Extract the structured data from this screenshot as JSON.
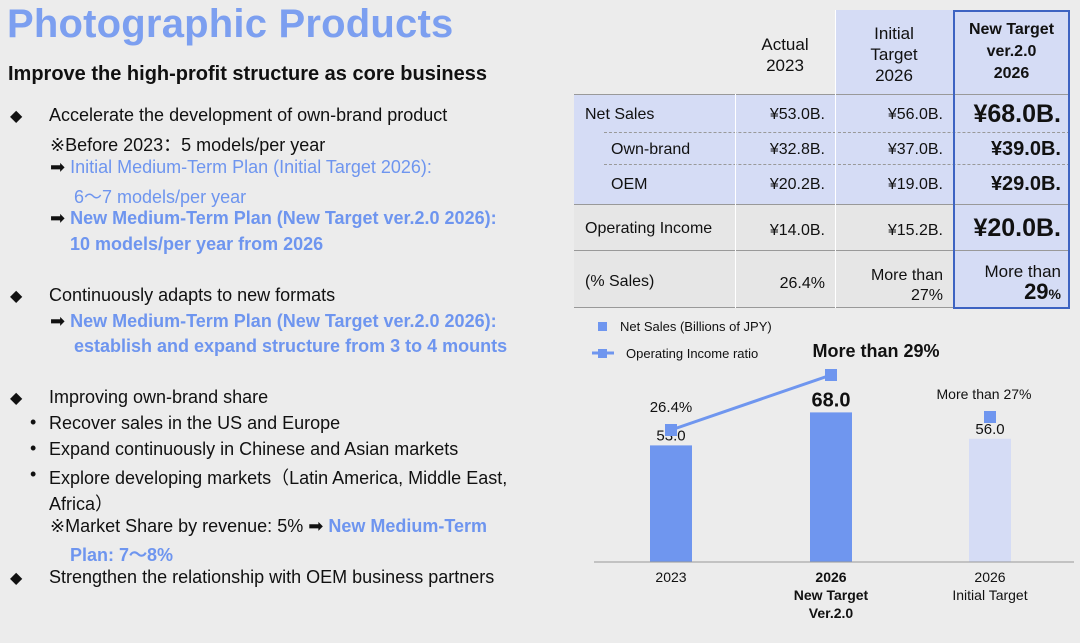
{
  "title": "Photographic Products",
  "subtitle": "Improve the high-profit structure as core business",
  "bullets": {
    "b1": "Accelerate the development of own-brand product",
    "b1_note": "※Before 2023：5 models/per year",
    "b1_a1_l1": "Initial Medium-Term Plan (Initial Target 2026):",
    "b1_a1_l2": "6〜7 models/per year",
    "b1_a2_l1": "New Medium-Term Plan (New Target ver.2.0 2026):",
    "b1_a2_l2": "10 models/per year from 2026",
    "b2": "Continuously adapts to new formats",
    "b2_a1_l1": "New Medium-Term Plan (New Target ver.2.0 2026):",
    "b2_a1_l2": "establish and expand structure from 3 to 4 mounts",
    "b3": "Improving own-brand share",
    "b3_s1": "Recover sales in the US and Europe",
    "b3_s2": "Expand continuously in Chinese and Asian markets",
    "b3_s3_l1": "Explore developing markets（Latin America, Middle East,",
    "b3_s3_l2": "Africa）",
    "b3_note_a": "※Market Share by revenue: 5%",
    "b3_note_b": "New Medium-Term",
    "b3_note_c": "Plan: 7〜8%",
    "b4": "Strengthen the relationship with OEM business partners"
  },
  "table": {
    "headers": {
      "actual_l1": "Actual",
      "actual_l2": "2023",
      "initial_l1": "Initial",
      "initial_l2": "Target",
      "initial_l3": "2026",
      "new_l1": "New Target",
      "new_l2": "ver.2.0",
      "new_l3": "2026"
    },
    "rows": [
      {
        "label": "Net Sales",
        "actual": "¥53.0B.",
        "initial": "¥56.0B.",
        "new": "¥68.0B."
      },
      {
        "label": "Own-brand",
        "actual": "¥32.8B.",
        "initial": "¥37.0B.",
        "new": "¥39.0B."
      },
      {
        "label": "OEM",
        "actual": "¥20.2B.",
        "initial": "¥19.0B.",
        "new": "¥29.0B."
      },
      {
        "label": "Operating Income",
        "actual": "¥14.0B.",
        "initial": "¥15.2B.",
        "new": "¥20.0B."
      },
      {
        "label": "(% Sales)",
        "actual": "26.4%",
        "initial_l1": "More than",
        "initial_l2": "27%",
        "new_l1": "More than",
        "new_l2": "29",
        "new_l2_pct": "%"
      }
    ]
  },
  "chart_data": {
    "type": "bar",
    "legend": [
      "Net Sales (Billions of JPY)",
      "Operating Income ratio"
    ],
    "categories": [
      "2023",
      "2026 New Target Ver.2.0",
      "2026 Initial Target"
    ],
    "category_lines": [
      [
        "2023"
      ],
      [
        "2026",
        "New Target",
        "Ver.2.0"
      ],
      [
        "2026",
        "Initial Target"
      ]
    ],
    "values": [
      53.0,
      68.0,
      56.0
    ],
    "value_labels": [
      "53.0",
      "68.0",
      "56.0"
    ],
    "ratio_values": [
      26.4,
      29,
      27
    ],
    "ratio_labels": [
      "26.4%",
      "More than 29%",
      "More than 27%"
    ],
    "colors": {
      "bar": "#6f96ef",
      "bar_initial": "#d5dcf5",
      "line": "#6f96ef"
    },
    "ylim": [
      0,
      100
    ]
  }
}
